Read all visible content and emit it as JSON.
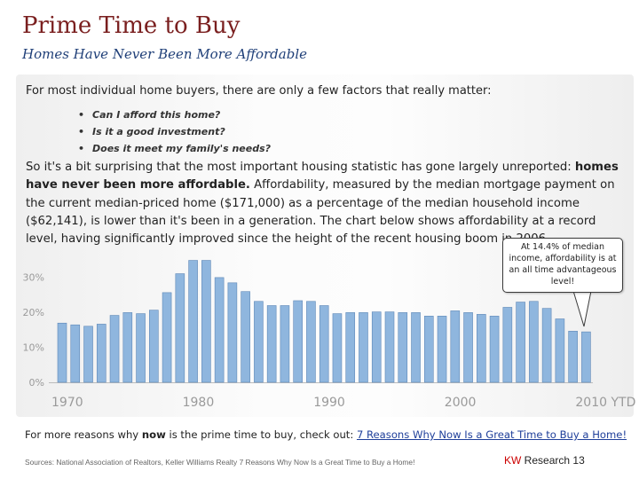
{
  "slide": {
    "title": "Prime Time to Buy",
    "subtitle": "Homes Have Never Been More Affordable",
    "intro": "For most individual home buyers, there are only a few factors that really matter:",
    "bullets": [
      "Can I afford this home?",
      "Is it a good investment?",
      "Does it meet my family's needs?"
    ],
    "paragraph": {
      "part1": "So it's a bit surprising that the most important housing statistic has gone largely unreported: ",
      "bold": "homes have never been more affordable.",
      "part2": "  Affordability, measured by the median mortgage payment on the current median-priced home ($171,000) as a percentage of the median household income ($62,141), is lower than it's been in a generation.  The chart below shows affordability at a record level, having significantly improved since the height of the recent housing boom in 2006."
    },
    "callout": "At 14.4% of median income, affordability is at an all time advantageous level!",
    "footer": {
      "prefix": "For more reasons why ",
      "bold": "now",
      "middle": " is the prime time to buy, check out: ",
      "link": "7 Reasons Why Now Is a Great Time to Buy a Home!"
    },
    "sources": "Sources: National Association of Realtors, Keller Williams Realty 7 Reasons Why Now Is a Great Time to Buy a Home!",
    "brand_kw": "KW",
    "brand_rest": " Research",
    "page_number": "13"
  },
  "colors": {
    "title": "#7a1f1f",
    "subtitle": "#1f3f78",
    "bar": "#8fb6de",
    "bar_edge": "#5f88b7",
    "tick": "#9a9a9a",
    "brand": "#cc0000"
  },
  "chart_data": {
    "type": "bar",
    "title": "",
    "xlabel": "",
    "ylabel": "",
    "ylim": [
      0,
      35
    ],
    "y_ticks": [
      0,
      10,
      20,
      30
    ],
    "y_tick_labels": [
      "0%",
      "10%",
      "20%",
      "30%"
    ],
    "x_tick_labels": [
      {
        "year": 1970,
        "label": "1970"
      },
      {
        "year": 1980,
        "label": "1980"
      },
      {
        "year": 1990,
        "label": "1990"
      },
      {
        "year": 2000,
        "label": "2000"
      },
      {
        "year": 2010,
        "label": "2010 YTD"
      }
    ],
    "grid": false,
    "legend": "none",
    "x": [
      1970,
      1971,
      1972,
      1973,
      1974,
      1975,
      1976,
      1977,
      1978,
      1979,
      1980,
      1981,
      1982,
      1983,
      1984,
      1985,
      1986,
      1987,
      1988,
      1989,
      1990,
      1991,
      1992,
      1993,
      1994,
      1995,
      1996,
      1997,
      1998,
      1999,
      2000,
      2001,
      2002,
      2003,
      2004,
      2005,
      2006,
      2007,
      2008,
      2009,
      2010
    ],
    "values": [
      16.9,
      16.4,
      16.0,
      16.6,
      19.1,
      19.9,
      19.6,
      20.6,
      25.6,
      31.0,
      34.8,
      34.8,
      29.9,
      28.4,
      25.9,
      23.1,
      21.9,
      21.9,
      23.3,
      23.1,
      21.9,
      19.6,
      19.9,
      19.9,
      20.1,
      20.1,
      19.9,
      19.9,
      18.9,
      18.9,
      20.4,
      19.9,
      19.4,
      18.9,
      21.4,
      22.9,
      23.1,
      21.1,
      18.1,
      14.6,
      14.4
    ]
  }
}
